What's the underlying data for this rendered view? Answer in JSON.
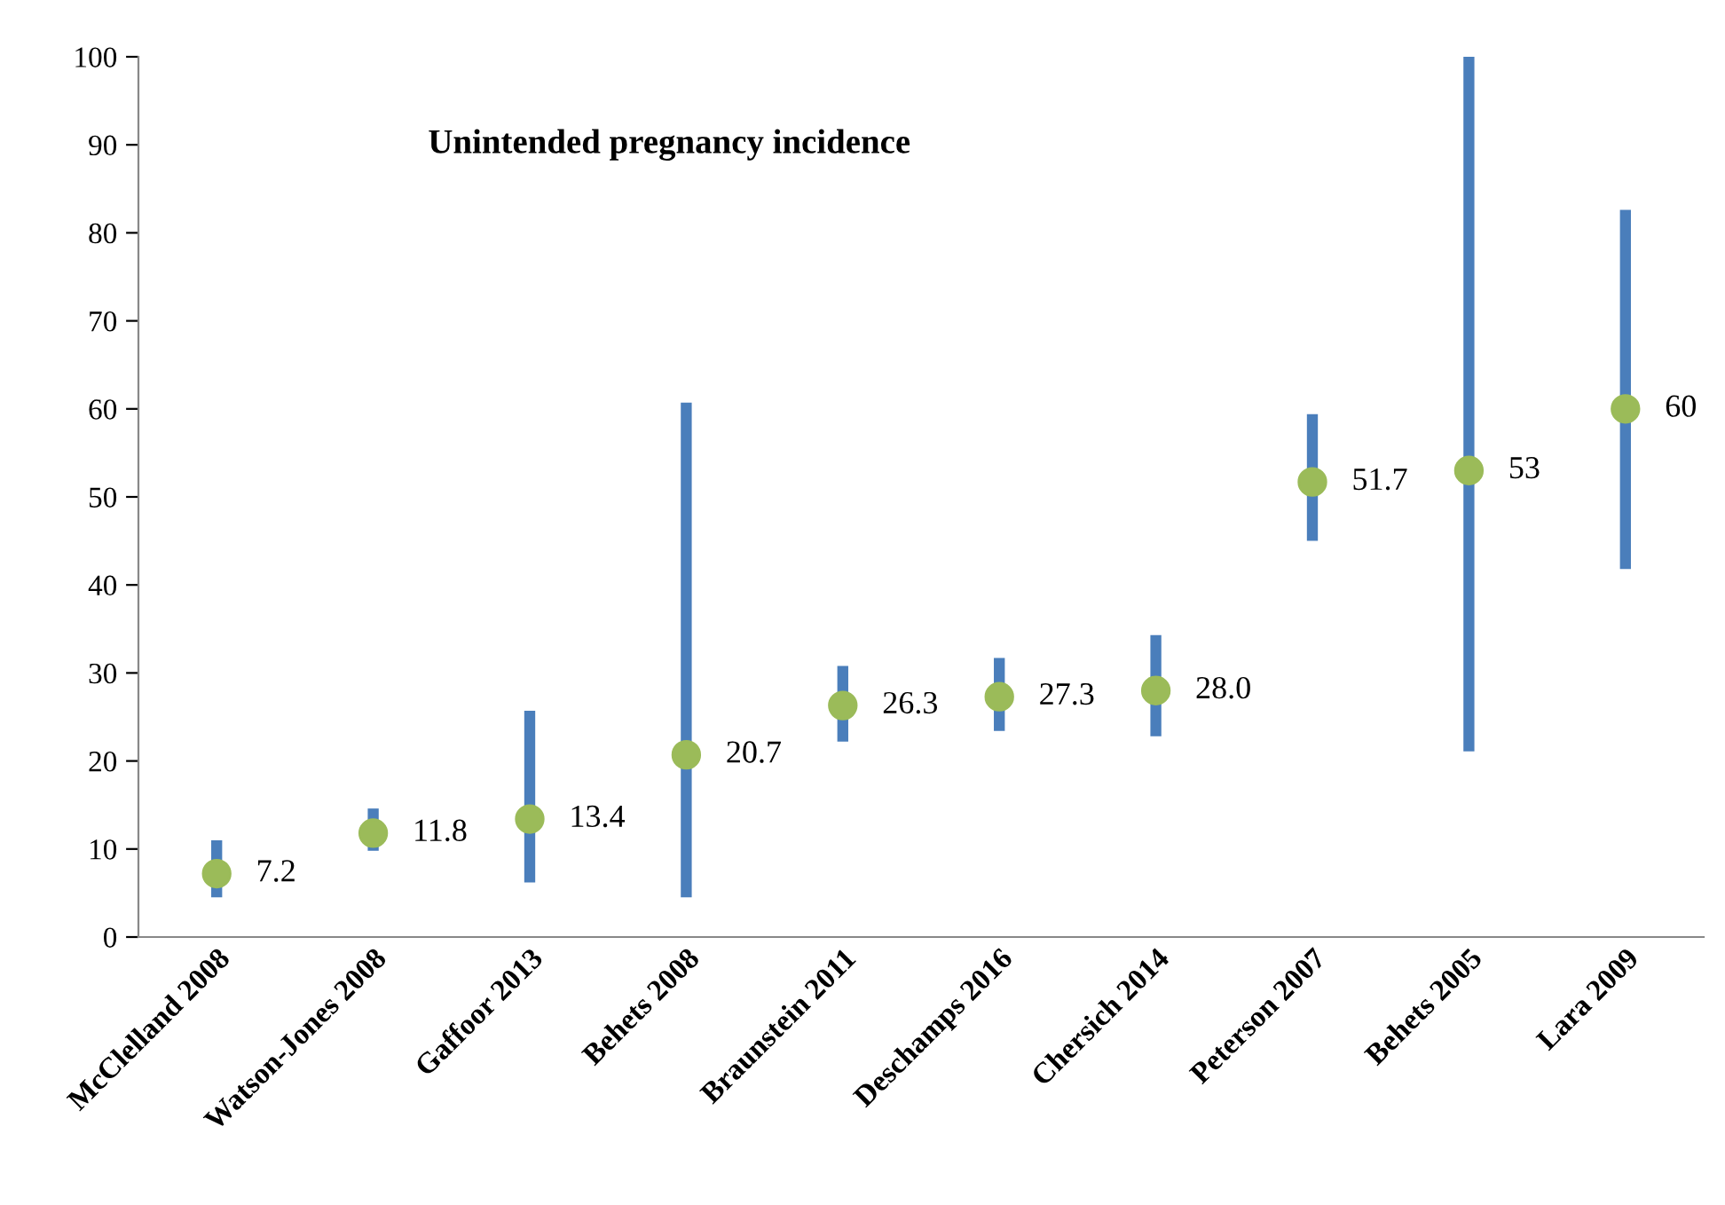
{
  "chart_data": {
    "type": "bar",
    "title": "Unintended pregnancy incidence",
    "categories": [
      "McClelland 2008",
      "Watson-Jones 2008",
      "Gaffoor 2013",
      "Behets 2008",
      "Braunstein 2011",
      "Deschamps 2016",
      "Chersich 2014",
      "Peterson 2007",
      "Behets 2005",
      "Lara 2009"
    ],
    "series": [
      {
        "color": "#4a7ebb",
        "base": [
          4.5,
          9.8,
          6.2,
          4.5,
          22.2,
          23.4,
          22.8,
          45,
          21.1,
          41.8
        ],
        "values": [
          6.5,
          4.8,
          19.5,
          56.2,
          8.6,
          8.3,
          11.5,
          14.4,
          78.9,
          40.8
        ]
      },
      {
        "type": "scatter",
        "color": "#9bbb59",
        "marker": "circle",
        "x": [
          "McClelland 2008",
          "Watson-Jones 2008",
          "Gaffoor 2013",
          "Behets 2008",
          "Braunstein 2011",
          "Deschamps 2016",
          "Chersich 2014",
          "Peterson 2007",
          "Behets 2005",
          "Lara 2009"
        ],
        "values": [
          7.2,
          11.8,
          13.4,
          20.7,
          26.3,
          27.3,
          28.0,
          51.7,
          53,
          60
        ],
        "value_labels": [
          "7.2",
          "11.8",
          "13.4",
          "20.7",
          "26.3",
          "27.3",
          "28.0",
          "51.7",
          "53",
          "60"
        ]
      }
    ],
    "ylim": [
      0,
      100
    ],
    "yticks": [
      0,
      10,
      20,
      30,
      40,
      50,
      60,
      70,
      80,
      90,
      100
    ],
    "grid": false,
    "legend": false
  }
}
